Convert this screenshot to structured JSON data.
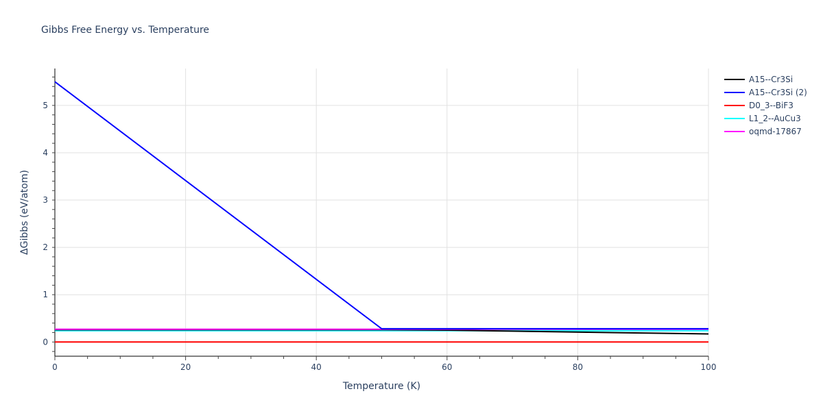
{
  "chart_data": {
    "type": "line",
    "title": "Gibbs Free Energy vs. Temperature",
    "xlabel": "Temperature (K)",
    "ylabel": "ΔGibbs (eV/atom)",
    "xlim": [
      0,
      100
    ],
    "ylim": [
      -0.3,
      5.78
    ],
    "x_ticks": [
      0,
      20,
      40,
      60,
      80,
      100
    ],
    "y_ticks": [
      0,
      1,
      2,
      3,
      4,
      5
    ],
    "grid": true,
    "legend_position": "right",
    "series": [
      {
        "name": "A15--Cr3Si",
        "color": "#000000",
        "x": [
          0,
          50,
          60,
          100
        ],
        "y": [
          0.26,
          0.26,
          0.25,
          0.17
        ]
      },
      {
        "name": "A15--Cr3Si (2)",
        "color": "#0000ff",
        "x": [
          0,
          50,
          100
        ],
        "y": [
          5.5,
          0.28,
          0.28
        ]
      },
      {
        "name": "D0_3--BiF3",
        "color": "#ff0000",
        "x": [
          0,
          100
        ],
        "y": [
          0.0,
          0.0
        ]
      },
      {
        "name": "L1_2--AuCu3",
        "color": "#00ffff",
        "x": [
          0,
          60,
          100
        ],
        "y": [
          0.24,
          0.24,
          0.24
        ]
      },
      {
        "name": "oqmd-17867",
        "color": "#ff00ff",
        "x": [
          0,
          100
        ],
        "y": [
          0.27,
          0.27
        ]
      }
    ]
  }
}
